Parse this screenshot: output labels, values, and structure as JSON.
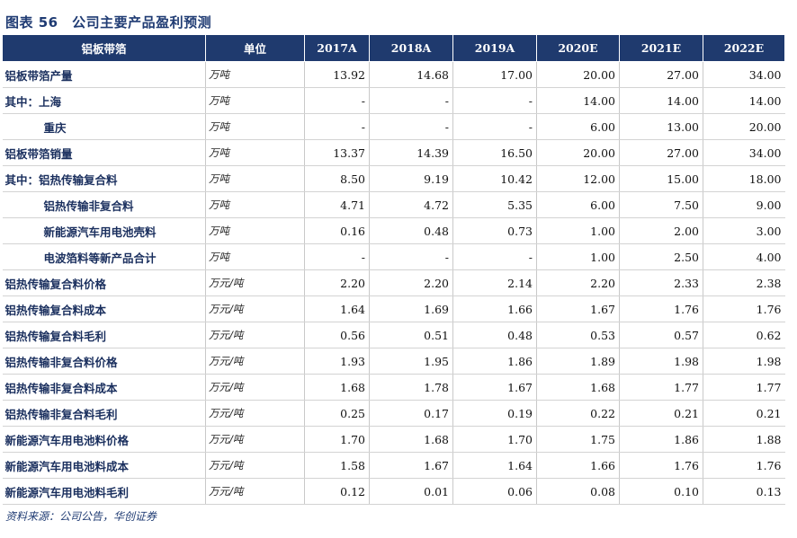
{
  "title": "图表 56　公司主要产品盈利预测",
  "header": {
    "col0": "铝板带箔",
    "col1": "单位",
    "years": [
      "2017A",
      "2018A",
      "2019A",
      "2020E",
      "2021E",
      "2022E"
    ]
  },
  "rows": [
    {
      "label": "铝板带箔产量",
      "unit": "万吨",
      "values": [
        "13.92",
        "14.68",
        "17.00",
        "20.00",
        "27.00",
        "34.00"
      ]
    },
    {
      "label": "其中：上海",
      "unit": "万吨",
      "values": [
        "-",
        "-",
        "-",
        "14.00",
        "14.00",
        "14.00"
      ]
    },
    {
      "label": "重庆",
      "unit": "万吨",
      "values": [
        "-",
        "-",
        "-",
        "6.00",
        "13.00",
        "20.00"
      ]
    },
    {
      "label": "铝板带箔销量",
      "unit": "万吨",
      "values": [
        "13.37",
        "14.39",
        "16.50",
        "20.00",
        "27.00",
        "34.00"
      ]
    },
    {
      "label": "其中：铝热传输复合料",
      "unit": "万吨",
      "values": [
        "8.50",
        "9.19",
        "10.42",
        "12.00",
        "15.00",
        "18.00"
      ]
    },
    {
      "label": "铝热传输非复合料",
      "unit": "万吨",
      "values": [
        "4.71",
        "4.72",
        "5.35",
        "6.00",
        "7.50",
        "9.00"
      ]
    },
    {
      "label": "新能源汽车用电池壳料",
      "unit": "万吨",
      "values": [
        "0.16",
        "0.48",
        "0.73",
        "1.00",
        "2.00",
        "3.00"
      ]
    },
    {
      "label": "电波箔料等新产品合计",
      "unit": "万吨",
      "values": [
        "-",
        "-",
        "-",
        "1.00",
        "2.50",
        "4.00"
      ]
    },
    {
      "label": "铝热传输复合料价格",
      "unit": "万元/吨",
      "values": [
        "2.20",
        "2.20",
        "2.14",
        "2.20",
        "2.33",
        "2.38"
      ]
    },
    {
      "label": "铝热传输复合料成本",
      "unit": "万元/吨",
      "values": [
        "1.64",
        "1.69",
        "1.66",
        "1.67",
        "1.76",
        "1.76"
      ]
    },
    {
      "label": "铝热传输复合料毛利",
      "unit": "万元/吨",
      "values": [
        "0.56",
        "0.51",
        "0.48",
        "0.53",
        "0.57",
        "0.62"
      ]
    },
    {
      "label": "铝热传输非复合料价格",
      "unit": "万元/吨",
      "values": [
        "1.93",
        "1.95",
        "1.86",
        "1.89",
        "1.98",
        "1.98"
      ]
    },
    {
      "label": "铝热传输非复合料成本",
      "unit": "万元/吨",
      "values": [
        "1.68",
        "1.78",
        "1.67",
        "1.68",
        "1.77",
        "1.77"
      ]
    },
    {
      "label": "铝热传输非复合料毛利",
      "unit": "万元/吨",
      "values": [
        "0.25",
        "0.17",
        "0.19",
        "0.22",
        "0.21",
        "0.21"
      ]
    },
    {
      "label": "新能源汽车用电池料价格",
      "unit": "万元/吨",
      "values": [
        "1.70",
        "1.68",
        "1.70",
        "1.75",
        "1.86",
        "1.88"
      ]
    },
    {
      "label": "新能源汽车用电池料成本",
      "unit": "万元/吨",
      "values": [
        "1.58",
        "1.67",
        "1.64",
        "1.66",
        "1.76",
        "1.76"
      ]
    },
    {
      "label": "新能源汽车用电池料毛利",
      "unit": "万元/吨",
      "values": [
        "0.12",
        "0.01",
        "0.06",
        "0.08",
        "0.10",
        "0.13"
      ]
    }
  ],
  "source": "资料来源：公司公告，华创证券",
  "colors": {
    "header_bg": "#1f3a6e",
    "title": "#1f3b73",
    "label": "#1a2f5e"
  }
}
